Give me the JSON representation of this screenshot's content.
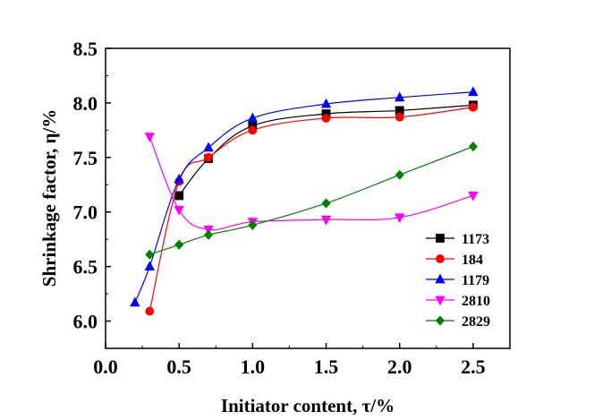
{
  "chart_data": {
    "type": "line",
    "xlabel": "Initiator content, τ/%",
    "ylabel": "Shrinkage factor, η/%",
    "xlim": [
      0.0,
      2.75
    ],
    "ylim": [
      5.75,
      8.5
    ],
    "x_ticks": [
      "0.0",
      "0.5",
      "1.0",
      "1.5",
      "2.0",
      "2.5"
    ],
    "y_ticks": [
      "6.0",
      "6.5",
      "7.0",
      "7.5",
      "8.0",
      "8.5"
    ],
    "x_tick_values": [
      0.0,
      0.5,
      1.0,
      1.5,
      2.0,
      2.5
    ],
    "y_tick_values": [
      6.0,
      6.5,
      7.0,
      7.5,
      8.0,
      8.5
    ],
    "grid": false,
    "legend_position": "lower-right",
    "series": [
      {
        "name": "1173",
        "color": "#000000",
        "marker": "square",
        "x": [
          0.5,
          0.7,
          1.0,
          1.5,
          2.0,
          2.5
        ],
        "y": [
          7.15,
          7.49,
          7.79,
          7.9,
          7.93,
          7.98
        ]
      },
      {
        "name": "184",
        "color": "#ff0000",
        "marker": "circle",
        "x": [
          0.3,
          0.5,
          0.7,
          1.0,
          1.5,
          2.0,
          2.5
        ],
        "y": [
          6.09,
          7.28,
          7.5,
          7.75,
          7.86,
          7.87,
          7.96
        ]
      },
      {
        "name": "1179",
        "color": "#0000ff",
        "marker": "triangle-up",
        "x": [
          0.2,
          0.3,
          0.5,
          0.7,
          1.0,
          1.5,
          2.0,
          2.5
        ],
        "y": [
          6.17,
          6.5,
          7.3,
          7.59,
          7.86,
          7.99,
          8.05,
          8.1
        ]
      },
      {
        "name": "2810",
        "color": "#ff00ff",
        "marker": "triangle-down",
        "x": [
          0.3,
          0.5,
          0.7,
          1.0,
          1.5,
          2.0,
          2.5
        ],
        "y": [
          7.69,
          7.02,
          6.84,
          6.91,
          6.93,
          6.95,
          7.15
        ]
      },
      {
        "name": "2829",
        "color": "#008000",
        "marker": "diamond",
        "x": [
          0.3,
          0.5,
          0.7,
          1.0,
          1.5,
          2.0,
          2.5
        ],
        "y": [
          6.61,
          6.7,
          6.79,
          6.88,
          7.08,
          7.34,
          7.6
        ]
      }
    ]
  }
}
